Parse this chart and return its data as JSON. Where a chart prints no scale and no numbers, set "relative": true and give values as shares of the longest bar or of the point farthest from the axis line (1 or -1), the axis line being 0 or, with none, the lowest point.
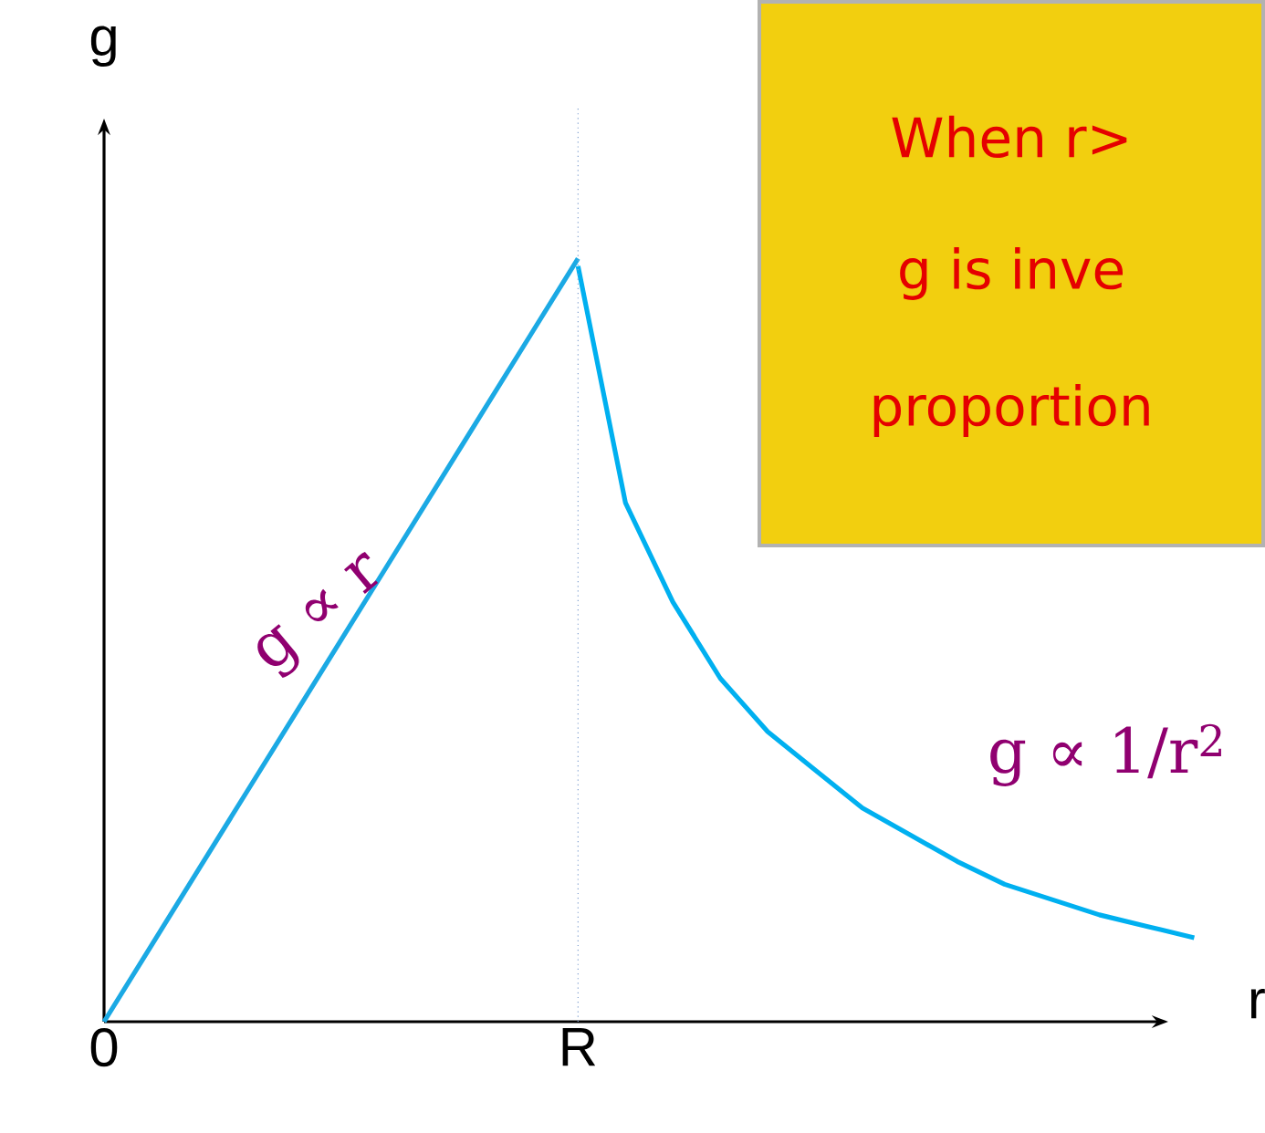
{
  "chart_data": {
    "type": "line",
    "relative": true,
    "xlabel": "r",
    "ylabel": "g",
    "categories": [
      "0",
      null,
      null,
      null,
      null,
      null,
      null,
      null,
      null,
      null,
      "R",
      null,
      null,
      null,
      null,
      null,
      null,
      null,
      null,
      null,
      null,
      null,
      null,
      null
    ],
    "series": [
      {
        "color": "#1ba9e4",
        "values": [
          0,
          0.1,
          0.2,
          0.3,
          0.4,
          0.5,
          0.6,
          0.7,
          0.8,
          0.9,
          1.0,
          null,
          null,
          null,
          null,
          null,
          null,
          null,
          null,
          null,
          null,
          null,
          null,
          null
        ]
      },
      {
        "color": "#00b0f0",
        "values": [
          null,
          null,
          null,
          null,
          null,
          null,
          null,
          null,
          null,
          null,
          0.99,
          0.68,
          0.55,
          0.45,
          0.38,
          0.33,
          0.28,
          0.245,
          0.21,
          0.18,
          0.16,
          0.14,
          0.125,
          0.11
        ]
      }
    ],
    "ref_lines": [
      {
        "axis": "x",
        "value": "R",
        "color": "#7f9fcf",
        "line_style": "dotted"
      }
    ],
    "annotations": [
      "g ∝ r",
      "g ∝ 1/r$^{2}$",
      "When r>",
      "g is inve",
      "proportion"
    ],
    "grid": false,
    "marker": "none",
    "line_style": "solid"
  }
}
